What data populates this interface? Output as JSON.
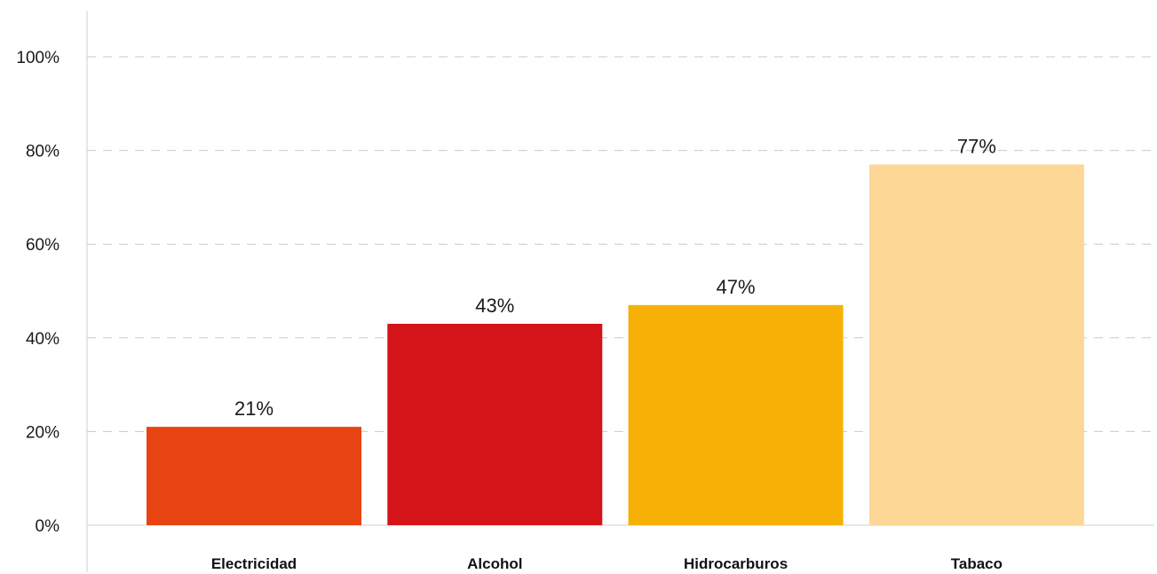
{
  "chart_data": {
    "type": "bar",
    "categories": [
      "Electricidad",
      "Alcohol",
      "Hidrocarburos",
      "Tabaco"
    ],
    "values": [
      21,
      43,
      47,
      77
    ],
    "data_labels": [
      "21%",
      "43%",
      "47%",
      "77%"
    ],
    "colors": [
      "#e84312",
      "#d41418",
      "#f7b005",
      "#fcd796"
    ],
    "ylim": [
      0,
      100
    ],
    "yticks": [
      0,
      20,
      40,
      60,
      80,
      100
    ],
    "ytick_labels": [
      "0%",
      "20%",
      "40%",
      "60%",
      "80%",
      "100%"
    ],
    "grid": true,
    "grid_style": "dashed",
    "legend": "none"
  }
}
